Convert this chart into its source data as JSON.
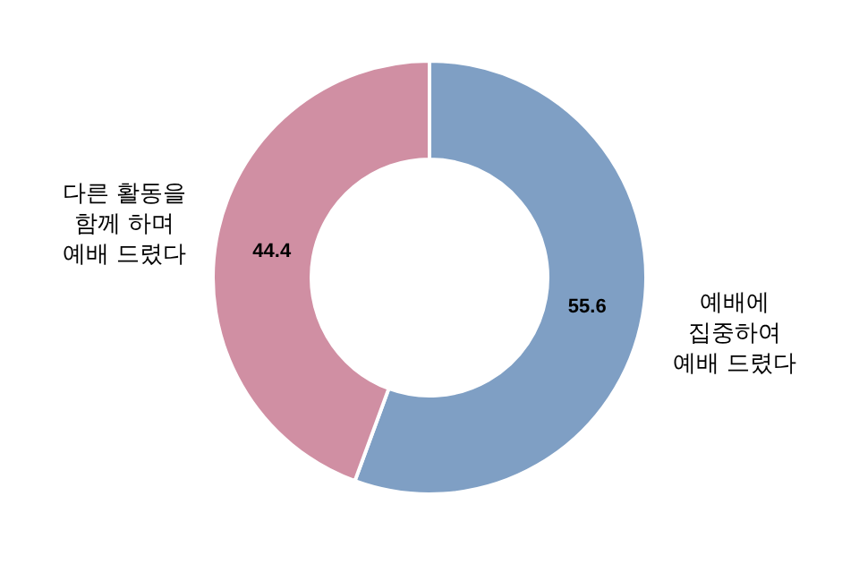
{
  "chart_data": {
    "type": "donut",
    "categories": [
      "예배에\n집중하여\n예배 드렸다",
      "다른 활동을\n함께 하며\n예배 드렸다"
    ],
    "values": [
      55.6,
      44.4
    ],
    "colors": [
      "#7f9fc4",
      "#d08fa3"
    ],
    "data_labels": true
  }
}
